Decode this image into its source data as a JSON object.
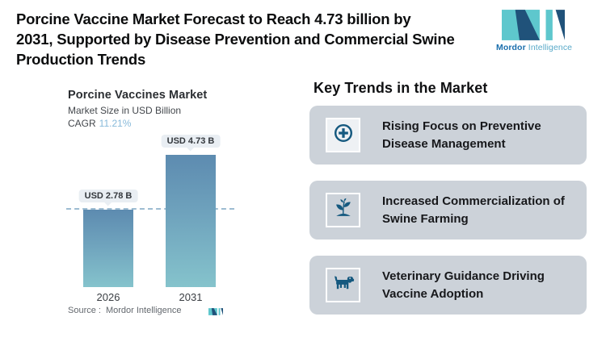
{
  "header": {
    "title_lines": [
      "Porcine Vaccine Market Forecast to Reach 4.73 billion by",
      "2031, Supported by Disease Prevention and Commercial Swine",
      "Production Trends"
    ],
    "brand": {
      "name_bold": "Mordor",
      "name_light": "Intelligence"
    }
  },
  "chart": {
    "title": "Porcine Vaccines Market",
    "subtitle": "Market Size in USD Billion",
    "cagr_label": "CAGR",
    "cagr_value": "11.21%",
    "source_label": "Source :",
    "source_value": "Mordor Intelligence"
  },
  "chart_data": {
    "type": "bar",
    "categories": [
      "2026",
      "2031"
    ],
    "values": [
      2.78,
      4.73
    ],
    "value_labels": [
      "USD 2.78 B",
      "USD 4.73 B"
    ],
    "title": "Porcine Vaccines Market",
    "ylabel": "Market Size in USD Billion",
    "cagr": "11.21%",
    "ylim": [
      0,
      4.9
    ],
    "grid": false,
    "legend": false,
    "annotations": [
      "dashed horizontal reference line at 2026 value (2.78)"
    ],
    "bar_gradient_top": "#5d8bb0",
    "bar_gradient_bottom": "#85c3cc"
  },
  "trends": {
    "heading": "Key Trends in the Market",
    "items": [
      {
        "icon": "medical-plus-icon",
        "title": "Rising Focus on Preventive Disease Management"
      },
      {
        "icon": "sprout-icon",
        "title": "Increased Commercialization of Swine Farming"
      },
      {
        "icon": "dog-icon",
        "title": "Veterinary Guidance Driving Vaccine Adoption"
      }
    ]
  },
  "colors": {
    "logo_teal": "#5ec7cd",
    "logo_navy": "#20527a",
    "brand_bold_text": "#1b6fad",
    "brand_light_text": "#58a9c8",
    "trend_icon_blue": "#15597f",
    "card_background": "#ccd2d9",
    "cagr_value_text": "#88bada",
    "dashed_line": "#9dbcd2",
    "pill_background": "#e9eef3"
  }
}
